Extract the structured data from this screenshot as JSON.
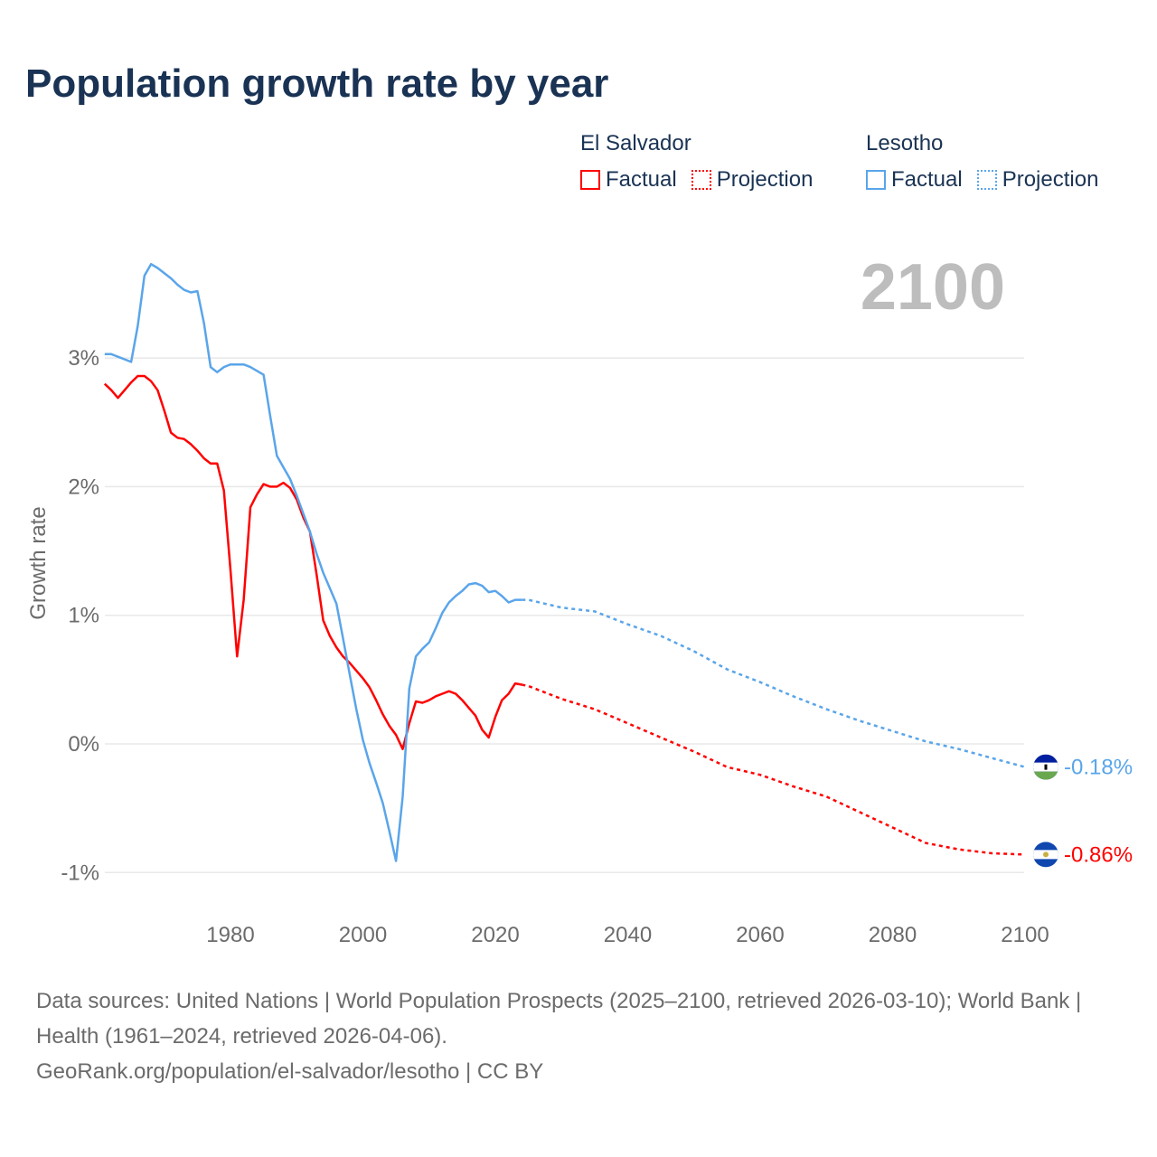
{
  "title": "Population growth rate by year",
  "legend": {
    "groups": [
      {
        "name": "El Salvador",
        "factual": "Factual",
        "projection": "Projection",
        "color": "#ff0000"
      },
      {
        "name": "Lesotho",
        "factual": "Factual",
        "projection": "Projection",
        "color": "#5aa5ea"
      }
    ]
  },
  "year_display": "2100",
  "footer": {
    "sources": "Data sources: United Nations | World Population Prospects (2025–2100, retrieved 2026-03-10); World Bank | Health (1961–2024, retrieved 2026-04-06).",
    "link": "GeoRank.org/population/el-salvador/lesotho | CC BY"
  },
  "chart_data": {
    "type": "line",
    "title": "Population growth rate by year",
    "xlabel": "",
    "ylabel": "Growth rate",
    "xlim": [
      1961,
      2100
    ],
    "ylim": [
      -1.3,
      3.9
    ],
    "x_ticks": [
      1980,
      2000,
      2020,
      2040,
      2060,
      2080,
      2100
    ],
    "x_tick_labels": [
      "1980",
      "2000",
      "2020",
      "2040",
      "2060",
      "2080",
      "2100"
    ],
    "y_ticks": [
      -1,
      0,
      1,
      2,
      3
    ],
    "y_tick_labels": [
      "-1%",
      "0%",
      "1%",
      "2%",
      "3%"
    ],
    "grid": true,
    "legend_position": "top-right",
    "series": [
      {
        "name": "El Salvador",
        "color": "#ff0000",
        "end_label": "-0.86%",
        "factual_x_start": 1961,
        "factual": [
          2.8,
          2.75,
          2.69,
          2.75,
          2.81,
          2.86,
          2.86,
          2.82,
          2.75,
          2.59,
          2.42,
          2.38,
          2.37,
          2.33,
          2.28,
          2.22,
          2.18,
          2.18,
          1.97,
          1.35,
          0.68,
          1.12,
          1.84,
          1.94,
          2.02,
          2.0,
          2.0,
          2.03,
          1.99,
          1.9,
          1.76,
          1.65,
          1.32,
          0.96,
          0.84,
          0.75,
          0.68,
          0.63,
          0.57,
          0.51,
          0.44,
          0.34,
          0.23,
          0.14,
          0.07,
          -0.04,
          0.16,
          0.33,
          0.32,
          0.34,
          0.37,
          0.39,
          0.41,
          0.39,
          0.34,
          0.28,
          0.22,
          0.11,
          0.05,
          0.21,
          0.34,
          0.39,
          0.47,
          0.46
        ],
        "projection_x": [
          2024,
          2025,
          2030,
          2035,
          2040,
          2045,
          2050,
          2055,
          2060,
          2065,
          2070,
          2075,
          2080,
          2085,
          2090,
          2095,
          2100
        ],
        "projection": [
          0.46,
          0.45,
          0.35,
          0.27,
          0.16,
          0.05,
          -0.06,
          -0.18,
          -0.24,
          -0.33,
          -0.41,
          -0.53,
          -0.65,
          -0.77,
          -0.82,
          -0.85,
          -0.86
        ]
      },
      {
        "name": "Lesotho",
        "color": "#5aa5ea",
        "end_label": "-0.18%",
        "factual_x_start": 1961,
        "factual": [
          3.03,
          3.03,
          3.01,
          2.99,
          2.97,
          3.25,
          3.64,
          3.73,
          3.7,
          3.66,
          3.62,
          3.57,
          3.53,
          3.51,
          3.52,
          3.27,
          2.93,
          2.89,
          2.93,
          2.95,
          2.95,
          2.95,
          2.93,
          2.9,
          2.87,
          2.55,
          2.24,
          2.15,
          2.06,
          1.93,
          1.79,
          1.65,
          1.48,
          1.33,
          1.21,
          1.09,
          0.82,
          0.54,
          0.27,
          0.03,
          -0.15,
          -0.3,
          -0.46,
          -0.68,
          -0.91,
          -0.41,
          0.43,
          0.68,
          0.74,
          0.79,
          0.9,
          1.02,
          1.1,
          1.15,
          1.19,
          1.24,
          1.25,
          1.23,
          1.18,
          1.19,
          1.15,
          1.1,
          1.12,
          1.12
        ],
        "projection_x": [
          2024,
          2025,
          2030,
          2035,
          2040,
          2045,
          2050,
          2055,
          2060,
          2065,
          2070,
          2075,
          2080,
          2085,
          2090,
          2095,
          2100
        ],
        "projection": [
          1.12,
          1.12,
          1.06,
          1.03,
          0.93,
          0.84,
          0.72,
          0.58,
          0.48,
          0.37,
          0.27,
          0.18,
          0.1,
          0.02,
          -0.04,
          -0.11,
          -0.18
        ]
      }
    ]
  }
}
